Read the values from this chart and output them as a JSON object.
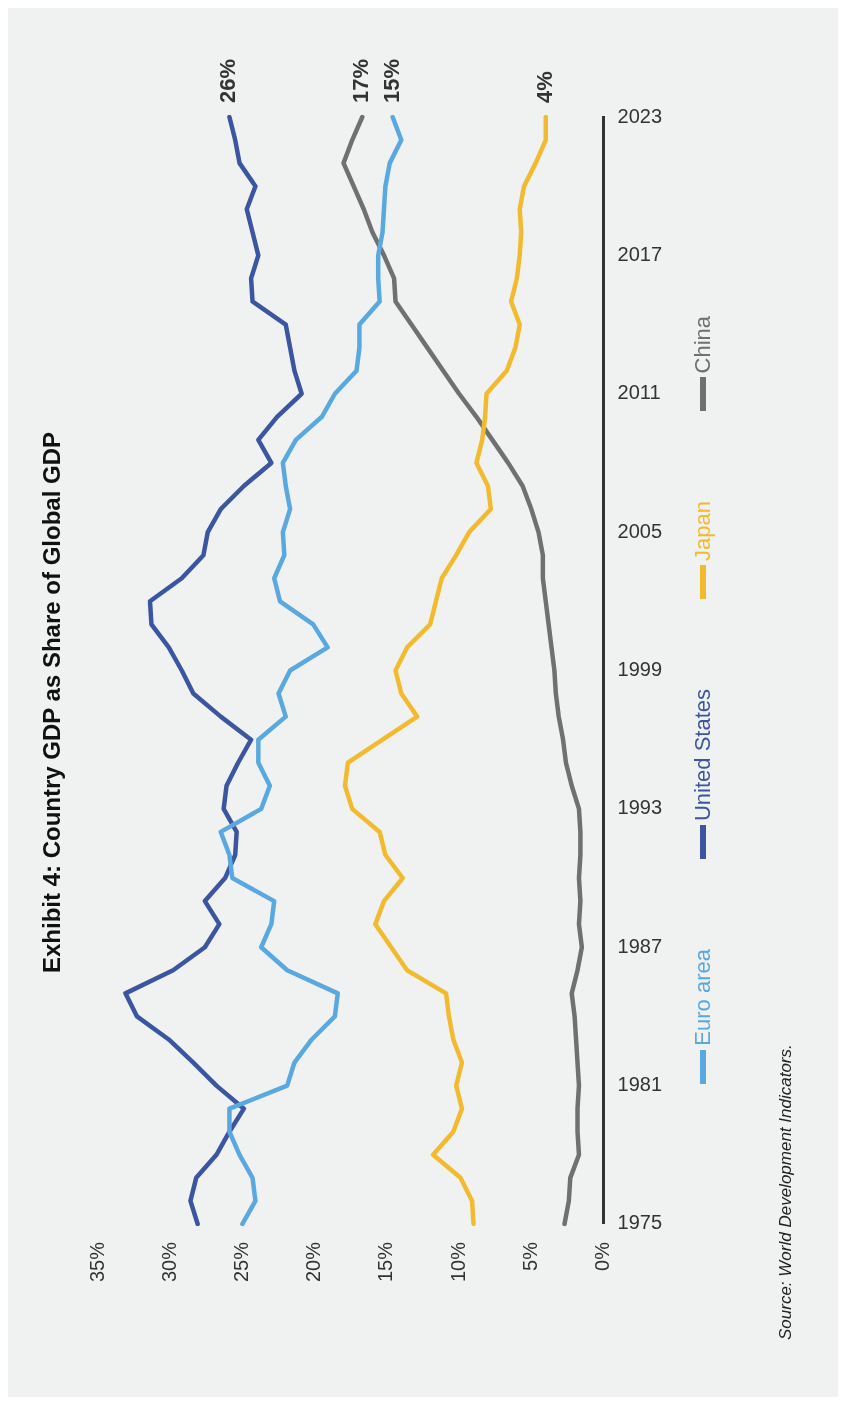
{
  "chart_data": {
    "type": "line",
    "orientation": "horizontal",
    "title": "Exhibit 4: Country GDP as Share of Global GDP",
    "categories": [
      "2023",
      null,
      null,
      null,
      null,
      null,
      "2017",
      null,
      null,
      null,
      null,
      null,
      "2011",
      null,
      null,
      null,
      null,
      null,
      "2005",
      null,
      null,
      null,
      null,
      null,
      "1999",
      null,
      null,
      null,
      null,
      null,
      "1993",
      null,
      null,
      null,
      null,
      null,
      "1987",
      null,
      null,
      null,
      null,
      null,
      "1981",
      null,
      null,
      null,
      null,
      null,
      "1975"
    ],
    "series": [
      {
        "name": "Euro area",
        "color": "#5aa8e0",
        "values": [
          14.6,
          14.0,
          14.8,
          15.1,
          15.2,
          15.3,
          15.6,
          15.6,
          15.5,
          16.9,
          16.9,
          17.1,
          18.6,
          19.5,
          21.3,
          22.2,
          22.0,
          21.7,
          22.2,
          22.1,
          22.8,
          22.4,
          20.1,
          19.1,
          21.7,
          22.5,
          22.0,
          23.9,
          23.9,
          23.1,
          23.7,
          26.5,
          25.9,
          25.7,
          22.8,
          23.0,
          23.7,
          21.9,
          18.4,
          18.6,
          20.2,
          21.4,
          21.9,
          25.9,
          25.9,
          25.2,
          24.3,
          24.1,
          25.0
        ],
        "value_labels": [
          "15%",
          null,
          null,
          null,
          null,
          null,
          null,
          null,
          null,
          null,
          null,
          null,
          null,
          null,
          null,
          null,
          null,
          null,
          null,
          null,
          null,
          null,
          null,
          null,
          null,
          null,
          null,
          null,
          null,
          null,
          null,
          null,
          null,
          null,
          null,
          null,
          null,
          null,
          null,
          null,
          null,
          null,
          null,
          null,
          null,
          null,
          null,
          null,
          null
        ]
      },
      {
        "name": "United States",
        "color": "#3b55a0",
        "values": [
          25.9,
          25.5,
          25.2,
          24.1,
          24.7,
          24.3,
          23.9,
          24.4,
          24.3,
          22.0,
          21.7,
          21.4,
          20.9,
          22.6,
          23.9,
          23.0,
          24.9,
          26.5,
          27.4,
          27.7,
          29.2,
          31.4,
          31.3,
          30.1,
          29.2,
          28.4,
          26.5,
          24.4,
          25.3,
          26.1,
          26.3,
          25.4,
          25.5,
          26.2,
          27.6,
          26.6,
          27.6,
          29.8,
          33.1,
          32.3,
          30.1,
          28.4,
          26.8,
          24.9,
          25.9,
          26.8,
          28.2,
          28.6,
          28.1
        ],
        "value_labels": [
          "26%",
          null,
          null,
          null,
          null,
          null,
          null,
          null,
          null,
          null,
          null,
          null,
          null,
          null,
          null,
          null,
          null,
          null,
          null,
          null,
          null,
          null,
          null,
          null,
          null,
          null,
          null,
          null,
          null,
          null,
          null,
          null,
          null,
          null,
          null,
          null,
          null,
          null,
          null,
          null,
          null,
          null,
          null,
          null,
          null,
          null,
          null,
          null,
          null
        ]
      },
      {
        "name": "Japan",
        "color": "#f2bb2f",
        "values": [
          4.0,
          4.0,
          4.7,
          5.5,
          5.8,
          5.7,
          5.8,
          6.0,
          6.4,
          5.8,
          6.1,
          6.7,
          8.1,
          8.2,
          8.4,
          8.8,
          8.0,
          7.8,
          9.3,
          10.2,
          11.2,
          11.6,
          12.0,
          13.6,
          14.4,
          14.0,
          12.9,
          15.3,
          17.7,
          17.9,
          17.4,
          15.5,
          15.1,
          13.9,
          15.2,
          15.8,
          14.7,
          13.6,
          10.9,
          10.7,
          10.4,
          9.8,
          10.2,
          9.8,
          10.4,
          11.8,
          9.9,
          9.1,
          9.0
        ],
        "value_labels": [
          "4%",
          null,
          null,
          null,
          null,
          null,
          null,
          null,
          null,
          null,
          null,
          null,
          null,
          null,
          null,
          null,
          null,
          null,
          null,
          null,
          null,
          null,
          null,
          null,
          null,
          null,
          null,
          null,
          null,
          null,
          null,
          null,
          null,
          null,
          null,
          null,
          null,
          null,
          null,
          null,
          null,
          null,
          null,
          null,
          null,
          null,
          null,
          null,
          null
        ]
      },
      {
        "name": "China",
        "color": "#707070",
        "values": [
          16.7,
          17.4,
          18.0,
          17.3,
          16.6,
          16.0,
          15.2,
          14.5,
          14.4,
          13.3,
          12.2,
          11.1,
          10.0,
          8.8,
          7.7,
          6.6,
          5.6,
          5.0,
          4.5,
          4.2,
          4.2,
          4.0,
          3.8,
          3.6,
          3.4,
          3.3,
          3.1,
          2.8,
          2.6,
          2.2,
          1.7,
          1.6,
          1.6,
          1.7,
          1.6,
          1.7,
          1.5,
          1.8,
          2.2,
          2.0,
          1.9,
          1.8,
          1.7,
          1.8,
          1.8,
          1.7,
          2.3,
          2.4,
          2.7
        ],
        "value_labels": [
          "17%",
          null,
          null,
          null,
          null,
          null,
          null,
          null,
          null,
          null,
          null,
          null,
          null,
          null,
          null,
          null,
          null,
          null,
          null,
          null,
          null,
          null,
          null,
          null,
          null,
          null,
          null,
          null,
          null,
          null,
          null,
          null,
          null,
          null,
          null,
          null,
          null,
          null,
          null,
          null,
          null,
          null,
          null,
          null,
          null,
          null,
          null,
          null,
          null
        ]
      }
    ],
    "xlim": [
      35,
      0
    ],
    "xticks": [
      {
        "value": 0,
        "label": "0%"
      },
      {
        "value": 5,
        "label": "5%"
      },
      {
        "value": 10,
        "label": "10%"
      },
      {
        "value": 15,
        "label": "15%"
      },
      {
        "value": 20,
        "label": "20%"
      },
      {
        "value": 25,
        "label": "25%"
      },
      {
        "value": 30,
        "label": "30%"
      },
      {
        "value": 35,
        "label": "35%"
      }
    ],
    "grid": false,
    "legend": "bottom",
    "marker": "none",
    "line_style": "solid",
    "annotations": [
      "Source: World Development Indicators."
    ]
  }
}
